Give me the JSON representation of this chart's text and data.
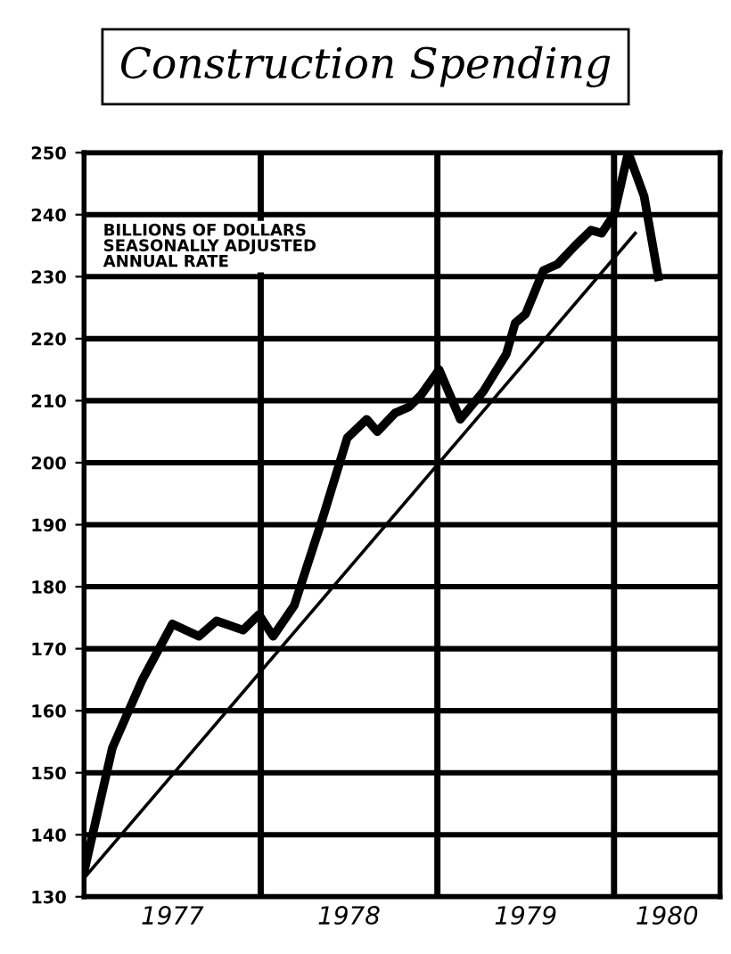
{
  "chart_data": {
    "type": "line",
    "title": "Construction Spending",
    "annotations": [
      "BILLIONS OF DOLLARS\nSEASONALLY ADJUSTED\nANNUAL RATE"
    ],
    "series": [
      {
        "color": "#000000",
        "x": [
          1977.0,
          1977.16,
          1977.33,
          1977.5,
          1977.65,
          1977.75,
          1977.9,
          1977.99,
          1978.07,
          1978.19,
          1978.35,
          1978.49,
          1978.6,
          1978.66,
          1978.76,
          1978.84,
          1978.91,
          1979.01,
          1979.13,
          1979.26,
          1979.39,
          1979.44,
          1979.5,
          1979.6,
          1979.68,
          1979.78,
          1979.87,
          1979.93,
          1980.0,
          1980.08,
          1980.17,
          1980.25
        ],
        "values": [
          134,
          154,
          165,
          174,
          172,
          174.5,
          173,
          175.5,
          172,
          177,
          191,
          204,
          207,
          205,
          208,
          209,
          211,
          215,
          207,
          211.5,
          217.5,
          222.5,
          224,
          231,
          232,
          235,
          237.5,
          237,
          240,
          250,
          243,
          230
        ]
      },
      {
        "type": "line",
        "color": "#000000",
        "x": [
          1977.0,
          1980.12
        ],
        "values": [
          133,
          237
        ]
      }
    ],
    "xlim": [
      1977,
      1980.6
    ],
    "xticks": [
      {
        "value": 1977.5,
        "label": "1977"
      },
      {
        "value": 1978.5,
        "label": "1978"
      },
      {
        "value": 1979.5,
        "label": "1979"
      },
      {
        "value": 1980.3,
        "label": "1980"
      }
    ],
    "ylim": [
      130,
      250
    ],
    "yticks": [
      130,
      140,
      150,
      160,
      170,
      180,
      190,
      200,
      210,
      220,
      230,
      240,
      250
    ],
    "grid": "y",
    "ref_lines": [
      {
        "axis": "x",
        "value": 1978
      },
      {
        "axis": "x",
        "value": 1979
      },
      {
        "axis": "x",
        "value": 1980
      }
    ]
  }
}
